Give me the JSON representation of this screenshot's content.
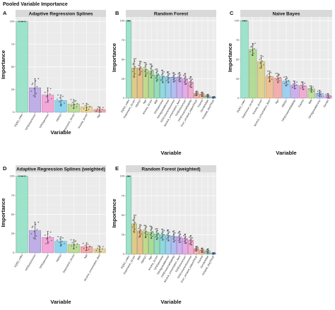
{
  "figure": {
    "title": "Pooled Variable Importance"
  },
  "chart_data": [
    {
      "id": "A",
      "type": "bar",
      "title": "Adaptive Regression Splines",
      "xlabel": "Variable",
      "ylabel": "Importance",
      "ylim": [
        0,
        105
      ],
      "yticks": [
        0,
        25,
        50,
        75,
        100
      ],
      "grid": true,
      "categories": [
        "EQ5D_index",
        "TIPIExtraversion",
        "TIPIOpenness",
        "HBA1C",
        "Depression_lscore",
        "Anxiety_lscore",
        "Age"
      ],
      "values": [
        100,
        27,
        19,
        13,
        9,
        6,
        3
      ],
      "error_low": [
        100,
        17,
        11,
        7,
        4,
        2,
        0
      ],
      "error_high": [
        100,
        37,
        27,
        19,
        14,
        10,
        6
      ],
      "colors": [
        "#8fe0c4",
        "#b7a3e6",
        "#f39bd6",
        "#7fd0ee",
        "#b4d88c",
        "#e8d48c",
        "#f5a0a0"
      ]
    },
    {
      "id": "B",
      "type": "bar",
      "title": "Random Forest",
      "xlabel": "Variable",
      "ylabel": "Importance",
      "ylim": [
        0,
        105
      ],
      "yticks": [
        0,
        25,
        50,
        75,
        100
      ],
      "grid": true,
      "categories": [
        "EQ5D_index",
        "Depression_lscore",
        "HBA1C",
        "Age",
        "Anxiety_lscore",
        "BMI",
        "TIPIOpenness",
        "TIPIAgreeableness",
        "TIPIConscientiousness",
        "Alcohol_consumption_lbert",
        "TIPIExtraversion",
        "TIPIEmotionalStability",
        "Ever_smoked_statusTRUE",
        "Trauma",
        "GenderMale",
        "Hospital_stayTRUE"
      ],
      "values": [
        100,
        39,
        39,
        37,
        35,
        30,
        28,
        27,
        27,
        27,
        25,
        21,
        6,
        5,
        3,
        1
      ],
      "error_low": [
        100,
        27,
        30,
        28,
        26,
        22,
        20,
        20,
        21,
        21,
        18,
        14,
        3,
        2,
        1,
        0
      ],
      "error_high": [
        100,
        51,
        48,
        46,
        44,
        38,
        36,
        34,
        33,
        33,
        32,
        28,
        9,
        8,
        5,
        2
      ],
      "colors": [
        "#8fe0c4",
        "#d7c77a",
        "#e6b77a",
        "#b9d67c",
        "#9ed88a",
        "#86d9b1",
        "#7fd6d8",
        "#8ec9ef",
        "#a9b5f0",
        "#c7a6ee",
        "#e2a0e6",
        "#f3a0cc",
        "#f0a8a8",
        "#f4b48c",
        "#9ad6c0",
        "#8ab4f0"
      ]
    },
    {
      "id": "C",
      "type": "bar",
      "title": "Naive Bayes",
      "xlabel": "Variable",
      "ylabel": "Importance",
      "ylim": [
        0,
        105
      ],
      "yticks": [
        0,
        25,
        50,
        75,
        100
      ],
      "grid": true,
      "categories": [
        "EQ5D_index",
        "Depression_lscore",
        "Anxiety_lscore",
        "Alcohol_consumption_lbert",
        "Age",
        "HBA1C",
        "TIPIEmotionalStability",
        "Trauma",
        "BMI",
        "TIPIAgreeableness",
        "Gender"
      ],
      "values": [
        100,
        63,
        47,
        28,
        26,
        22,
        17,
        16,
        12,
        6,
        3
      ],
      "error_low": [
        100,
        55,
        39,
        21,
        20,
        16,
        12,
        11,
        8,
        2,
        0
      ],
      "error_high": [
        100,
        71,
        55,
        35,
        32,
        28,
        22,
        21,
        16,
        10,
        6
      ],
      "colors": [
        "#8fe0c4",
        "#a8d88a",
        "#d8cf7e",
        "#f0b98a",
        "#f3a3a3",
        "#8fcaf0",
        "#c6a6ee",
        "#f2a0d0",
        "#b6d990",
        "#a3b8f2",
        "#e6a6e6"
      ]
    },
    {
      "id": "D",
      "type": "bar",
      "title": "Adaptive Regression Splines (weighted)",
      "xlabel": "Variable",
      "ylabel": "Importance",
      "ylim": [
        0,
        105
      ],
      "yticks": [
        0,
        25,
        50,
        75,
        100
      ],
      "grid": true,
      "categories": [
        "EQ5D_index",
        "TIPIExtraversion",
        "TIPIOpenness",
        "HBA1C",
        "Depression_lscore",
        "Age",
        "Alcohol_consumption_lbert"
      ],
      "values": [
        100,
        29,
        20,
        15,
        11,
        8,
        5
      ],
      "error_low": [
        100,
        18,
        12,
        9,
        5,
        3,
        1
      ],
      "error_high": [
        100,
        40,
        28,
        21,
        17,
        13,
        9
      ],
      "colors": [
        "#8fe0c4",
        "#b7a3e6",
        "#f39bd6",
        "#7fd0ee",
        "#b4d88c",
        "#f5a0a0",
        "#e8d48c"
      ]
    },
    {
      "id": "E",
      "type": "bar",
      "title": "Random Forest (weighted)",
      "xlabel": "Variable",
      "ylabel": "Importance",
      "ylim": [
        0,
        105
      ],
      "yticks": [
        0,
        25,
        50,
        75,
        100
      ],
      "grid": true,
      "categories": [
        "EQ5D_index",
        "Depression_lscore",
        "BMI",
        "HBA1C",
        "Age",
        "Anxiety_lscore",
        "TIPIOpenness",
        "TIPIAgreeableness",
        "TIPIEmotionalStability",
        "Alcohol_consumption_lbert",
        "TIPIExtraversion",
        "TIPIConscientiousness",
        "Ever_smoked_statusTRUE",
        "Trauma",
        "GenderMale",
        "Hospital_stayTRUE"
      ],
      "values": [
        100,
        39,
        30,
        29,
        28,
        26,
        25,
        24,
        23,
        22,
        20,
        18,
        7,
        5,
        4,
        1
      ],
      "error_low": [
        100,
        28,
        22,
        21,
        20,
        19,
        18,
        17,
        16,
        15,
        14,
        12,
        4,
        2,
        1,
        0
      ],
      "error_high": [
        100,
        50,
        38,
        37,
        36,
        33,
        32,
        31,
        30,
        29,
        26,
        24,
        10,
        8,
        7,
        2
      ],
      "colors": [
        "#8fe0c4",
        "#d7c77a",
        "#e6b77a",
        "#b9d67c",
        "#9ed88a",
        "#86d9b1",
        "#7fd6d8",
        "#8ec9ef",
        "#a9b5f0",
        "#c7a6ee",
        "#e2a0e6",
        "#f3a0cc",
        "#f0a8a8",
        "#f4b48c",
        "#9ad6c0",
        "#8ab4f0"
      ]
    }
  ]
}
